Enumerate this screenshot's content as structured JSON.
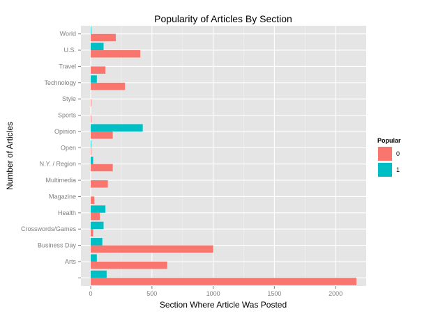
{
  "chart_data": {
    "type": "bar",
    "orientation": "horizontal",
    "title": "Popularity of Articles By Section",
    "xlabel": "Section Where Article Was Posted",
    "ylabel": "Number of Articles",
    "categories": [
      "",
      "Arts",
      "Business Day",
      "Crosswords/Games",
      "Health",
      "Magazine",
      "Multimedia",
      "N.Y. / Region",
      "Open",
      "Opinion",
      "Sports",
      "Style",
      "Technology",
      "Travel",
      "U.S.",
      "World"
    ],
    "series": [
      {
        "name": "0",
        "color": "#F8766D",
        "values": [
          2170,
          625,
          1000,
          20,
          75,
          30,
          140,
          180,
          3,
          180,
          1,
          1,
          280,
          120,
          405,
          205
        ]
      },
      {
        "name": "1",
        "color": "#00BFC4",
        "values": [
          130,
          50,
          95,
          105,
          120,
          0,
          0,
          20,
          4,
          425,
          0,
          0,
          50,
          0,
          105,
          1
        ]
      }
    ],
    "xlim": [
      -80,
      2250
    ],
    "xticks": [
      0,
      500,
      1000,
      1500,
      2000
    ],
    "grid": true,
    "legend": {
      "title": "Popular",
      "placement": "right"
    }
  }
}
